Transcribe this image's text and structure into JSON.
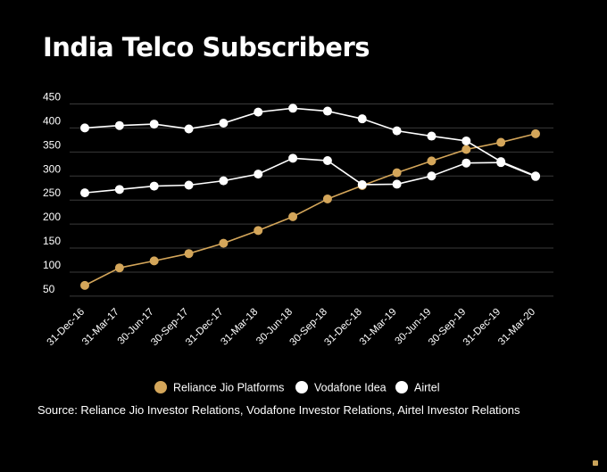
{
  "chart_data": {
    "type": "line",
    "title": "India Telco Subscribers",
    "categories": [
      "31-Dec-16",
      "31-Mar-17",
      "30-Jun-17",
      "30-Sep-17",
      "31-Dec-17",
      "31-Mar-18",
      "30-Jun-18",
      "30-Sep-18",
      "31-Dec-18",
      "31-Mar-19",
      "30-Jun-19",
      "30-Sep-19",
      "31-Dec-19",
      "31-Mar-20"
    ],
    "yticks": [
      50,
      100,
      150,
      200,
      250,
      300,
      350,
      400,
      450
    ],
    "ylim": [
      35,
      462
    ],
    "grid": true,
    "legend_position": "bottom",
    "series": [
      {
        "name": "Reliance Jio Platforms",
        "color": "#d4a65a",
        "values": [
          72.4,
          108.9,
          123.4,
          138.6,
          160.1,
          186.6,
          215.3,
          252.3,
          280.1,
          306.7,
          331.3,
          355.2,
          370.0,
          388.0
        ]
      },
      {
        "name": "Vodafone Idea",
        "color": "#ffffff",
        "values": [
          400,
          405,
          408,
          398,
          410,
          433,
          441,
          435,
          419,
          394,
          383,
          373,
          330,
          300
        ]
      },
      {
        "name": "Airtel",
        "color": "#ffffff",
        "values": [
          265,
          272,
          279,
          281,
          290,
          304,
          337,
          332,
          282,
          283,
          300,
          327,
          328,
          299
        ]
      }
    ]
  },
  "source": "Source: Reliance Jio Investor Relations, Vodafone Investor Relations, Airtel Investor Relations",
  "logo_color": "#c9a35a"
}
